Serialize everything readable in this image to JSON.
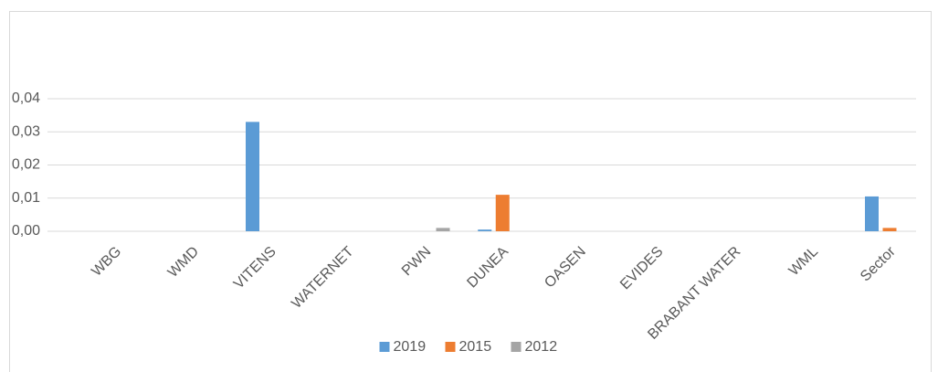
{
  "chart_data": {
    "type": "bar",
    "categories": [
      "WBG",
      "WMD",
      "VITENS",
      "WATERNET",
      "PWN",
      "DUNEA",
      "OASEN",
      "EVIDES",
      "BRABANT WATER",
      "WML",
      "Sector"
    ],
    "series": [
      {
        "name": "2019",
        "color": "#5b9bd5",
        "values": [
          0,
          0,
          0.033,
          0,
          0,
          0.0005,
          0,
          0,
          0,
          0,
          0.0105
        ]
      },
      {
        "name": "2015",
        "color": "#ed7d31",
        "values": [
          0,
          0,
          0,
          0,
          0,
          0.011,
          0,
          0,
          0,
          0,
          0.001
        ]
      },
      {
        "name": "2012",
        "color": "#a5a5a5",
        "values": [
          0,
          0,
          0,
          0,
          0.001,
          0,
          0,
          0,
          0,
          0,
          0
        ]
      }
    ],
    "ylim": [
      0,
      0.04
    ],
    "yticks": [
      {
        "value": 0,
        "label": "0,00"
      },
      {
        "value": 0.01,
        "label": "0,01"
      },
      {
        "value": 0.02,
        "label": "0,02"
      },
      {
        "value": 0.03,
        "label": "0,03"
      },
      {
        "value": 0.04,
        "label": "0,04"
      }
    ],
    "grid": true,
    "legend": "bottom"
  }
}
